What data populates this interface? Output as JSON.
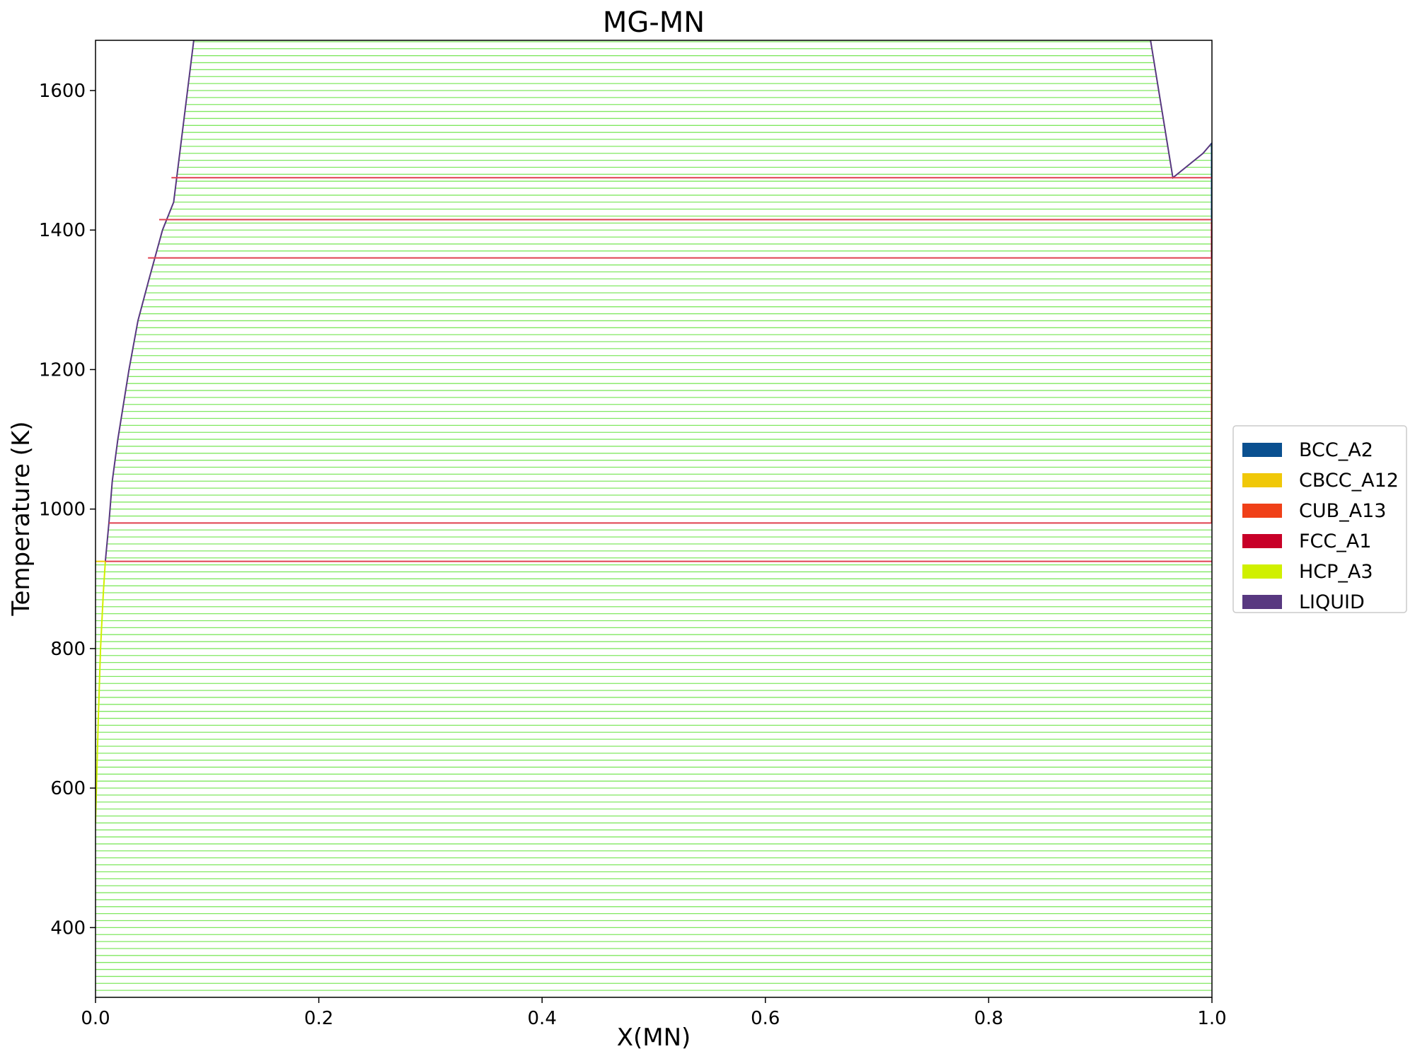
{
  "chart_data": {
    "type": "line",
    "title": "MG-MN",
    "xlabel": "X(MN)",
    "ylabel": "Temperature (K)",
    "xlim": [
      0.0,
      1.0
    ],
    "ylim": [
      300,
      1672
    ],
    "x_ticks": [
      "0.0",
      "0.2",
      "0.4",
      "0.6",
      "0.8",
      "1.0"
    ],
    "y_ticks": [
      "400",
      "600",
      "800",
      "1000",
      "1200",
      "1400",
      "1600"
    ],
    "legend_placement": "center-right",
    "legend": [
      {
        "name": "BCC_A2",
        "color": "#0a5090"
      },
      {
        "name": "CBCC_A12",
        "color": "#f0c808"
      },
      {
        "name": "CUB_A13",
        "color": "#f04018"
      },
      {
        "name": "FCC_A1",
        "color": "#c80028"
      },
      {
        "name": "HCP_A3",
        "color": "#d0f000"
      },
      {
        "name": "LIQUID",
        "color": "#583880"
      }
    ],
    "tieline": {
      "color": "#80e860",
      "t_start": 300,
      "t_end": 1672,
      "t_step": 10
    },
    "liquidus_left": [
      [
        0.0088,
        925
      ],
      [
        0.012,
        980
      ],
      [
        0.015,
        1040
      ],
      [
        0.02,
        1100
      ],
      [
        0.03,
        1200
      ],
      [
        0.038,
        1270
      ],
      [
        0.048,
        1330
      ],
      [
        0.06,
        1400
      ],
      [
        0.07,
        1440
      ],
      [
        0.088,
        1672
      ]
    ],
    "liquidus_right": [
      [
        0.945,
        1672
      ],
      [
        0.965,
        1475
      ],
      [
        0.992,
        1510
      ],
      [
        1.0,
        1525
      ]
    ],
    "bcc_segment": [
      [
        1.0,
        1525
      ],
      [
        1.0,
        1412
      ]
    ],
    "hcp_solvus": [
      [
        0.0,
        550
      ],
      [
        0.0025,
        700
      ],
      [
        0.0045,
        800
      ],
      [
        0.007,
        880
      ],
      [
        0.0088,
        925
      ]
    ],
    "cbcc_segment": [
      [
        0.0,
        925
      ],
      [
        0.0088,
        925
      ]
    ],
    "fcc_segment": [
      [
        1.0,
        1412
      ],
      [
        1.0,
        1360
      ]
    ],
    "cub_segment": [
      [
        1.0,
        1360
      ],
      [
        1.0,
        980
      ]
    ],
    "invariant_lines": [
      {
        "t": 1475,
        "x0": 0.068,
        "x1": 1.0,
        "color": "#e04050"
      },
      {
        "t": 1415,
        "x0": 0.057,
        "x1": 1.0,
        "color": "#e04050"
      },
      {
        "t": 1360,
        "x0": 0.047,
        "x1": 1.0,
        "color": "#e04050"
      },
      {
        "t": 980,
        "x0": 0.012,
        "x1": 1.0,
        "color": "#e04050"
      },
      {
        "t": 925,
        "x0": 0.0088,
        "x1": 1.0,
        "color": "#e04050"
      }
    ]
  }
}
